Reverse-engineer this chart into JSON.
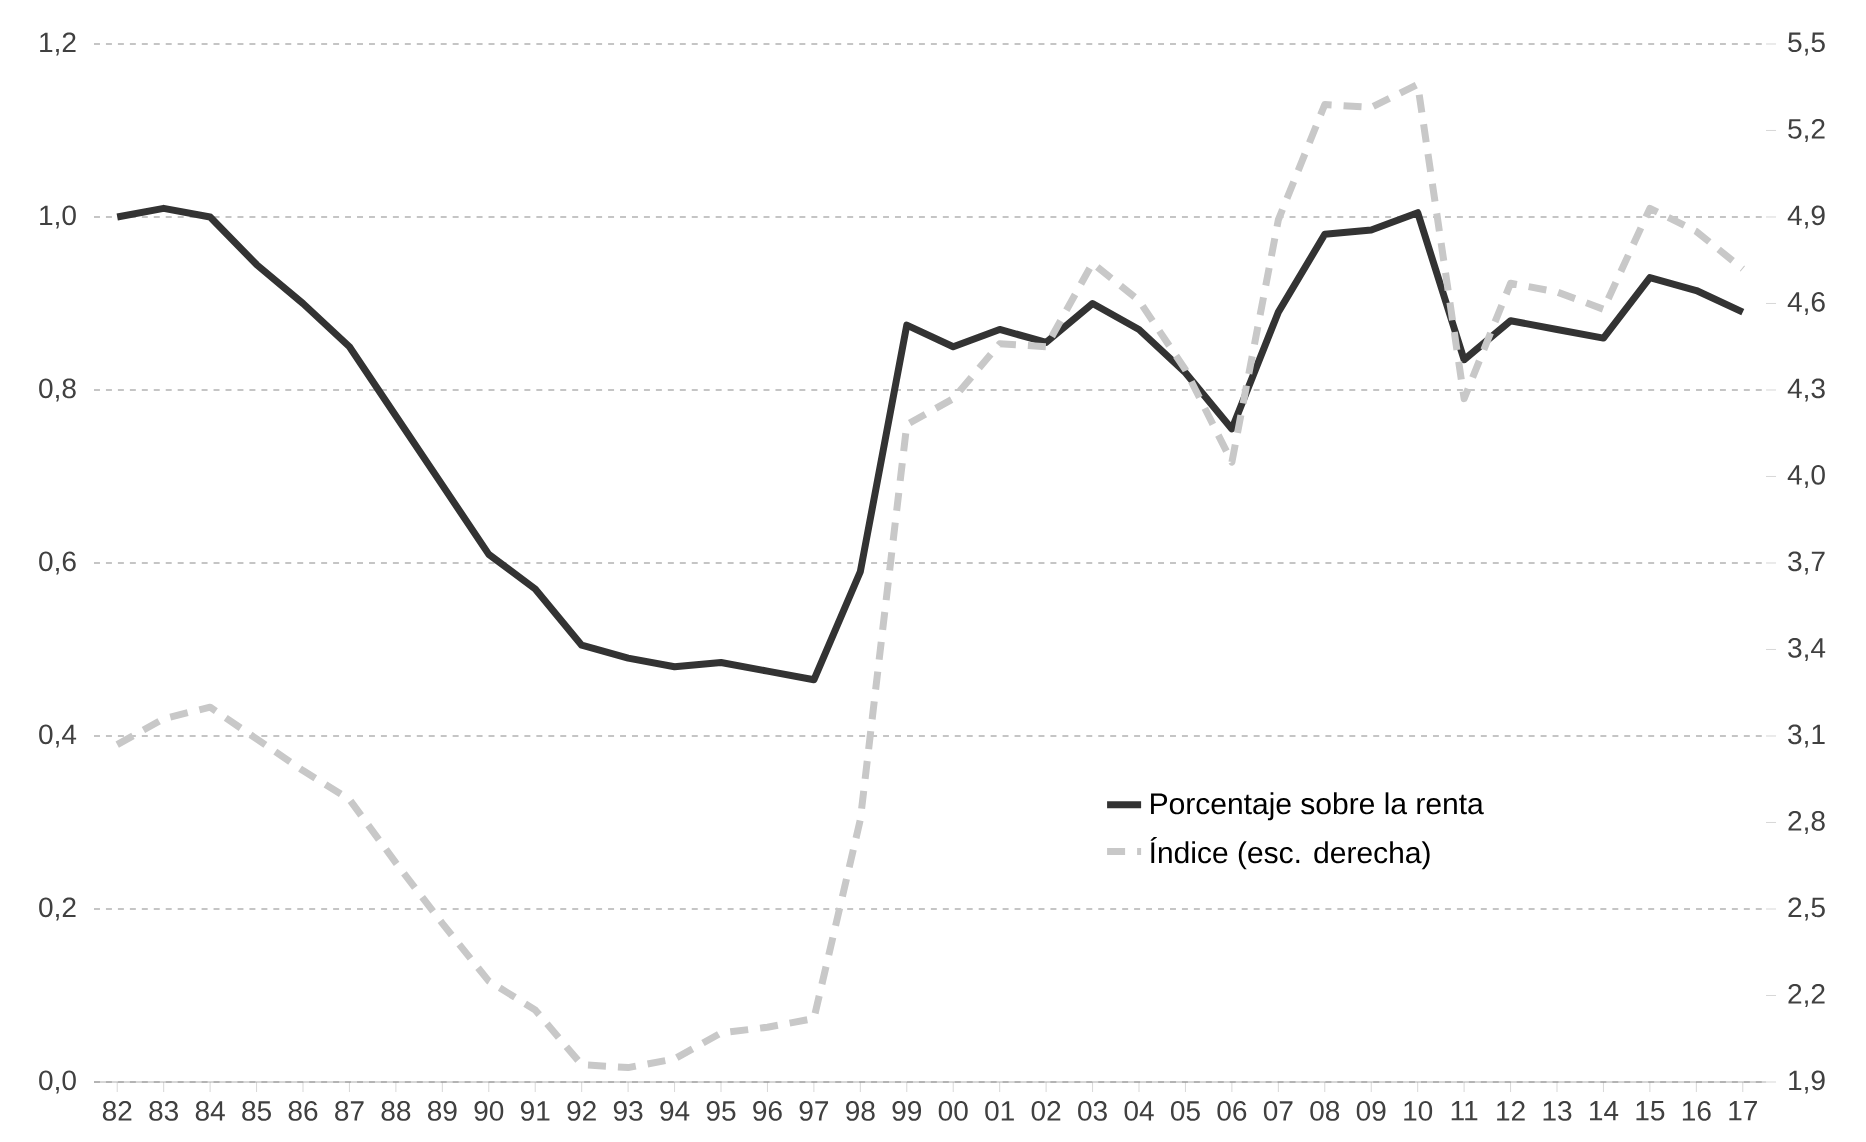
{
  "chart_data": {
    "type": "line",
    "categories": [
      "82",
      "83",
      "84",
      "85",
      "86",
      "87",
      "88",
      "89",
      "90",
      "91",
      "92",
      "93",
      "94",
      "95",
      "96",
      "97",
      "98",
      "99",
      "00",
      "01",
      "02",
      "03",
      "04",
      "05",
      "06",
      "07",
      "08",
      "09",
      "10",
      "11",
      "12",
      "13",
      "14",
      "15",
      "16",
      "17"
    ],
    "series": [
      {
        "name": "Porcentaje sobre la renta",
        "color": "#333333",
        "line_style": "solid",
        "values": [
          1.0,
          1.01,
          1.0,
          0.945,
          0.9,
          0.85,
          0.77,
          0.69,
          0.61,
          0.57,
          0.505,
          0.49,
          0.48,
          0.485,
          0.475,
          0.465,
          0.59,
          0.875,
          0.85,
          0.87,
          0.855,
          0.9,
          0.87,
          0.82,
          0.755,
          0.89,
          0.98,
          0.985,
          1.005,
          0.835,
          0.88,
          0.87,
          0.86,
          0.93,
          0.915,
          0.89
        ]
      },
      {
        "name": "Índice (esc. derecha)",
        "color": "#c8c8c8",
        "line_style": "dashed",
        "axis": "y2",
        "values": [
          3.07,
          3.16,
          3.2,
          3.09,
          2.98,
          2.88,
          2.66,
          2.45,
          2.25,
          2.15,
          1.96,
          1.95,
          1.98,
          2.07,
          2.09,
          2.12,
          2.81,
          4.18,
          4.27,
          4.46,
          4.45,
          4.74,
          4.61,
          4.37,
          4.05,
          4.89,
          5.29,
          5.28,
          5.36,
          4.27,
          4.67,
          4.64,
          4.58,
          4.93,
          4.85,
          4.72
        ]
      }
    ],
    "ylim": [
      0,
      1.2
    ],
    "yticks": [
      {
        "value": 0,
        "label": "0,0"
      },
      {
        "value": 0.2,
        "label": "0,2"
      },
      {
        "value": 0.4,
        "label": "0,4"
      },
      {
        "value": 0.6,
        "label": "0,6"
      },
      {
        "value": 0.8,
        "label": "0,8"
      },
      {
        "value": 1.0,
        "label": "1,0"
      },
      {
        "value": 1.2,
        "label": "1,2"
      }
    ],
    "y2lim": [
      1.9,
      5.5
    ],
    "y2ticks": [
      {
        "value": 1.9,
        "label": "1,9"
      },
      {
        "value": 2.2,
        "label": "2,2"
      },
      {
        "value": 2.5,
        "label": "2,5"
      },
      {
        "value": 2.8,
        "label": "2,8"
      },
      {
        "value": 3.1,
        "label": "3,1"
      },
      {
        "value": 3.4,
        "label": "3,4"
      },
      {
        "value": 3.7,
        "label": "3,7"
      },
      {
        "value": 4.0,
        "label": "4,0"
      },
      {
        "value": 4.3,
        "label": "4,3"
      },
      {
        "value": 4.6,
        "label": "4,6"
      },
      {
        "value": 4.9,
        "label": "4,9"
      },
      {
        "value": 5.2,
        "label": "5,2"
      },
      {
        "value": 5.5,
        "label": "5,5"
      }
    ],
    "grid": "y",
    "legend": "bottom right",
    "marker": "none"
  }
}
